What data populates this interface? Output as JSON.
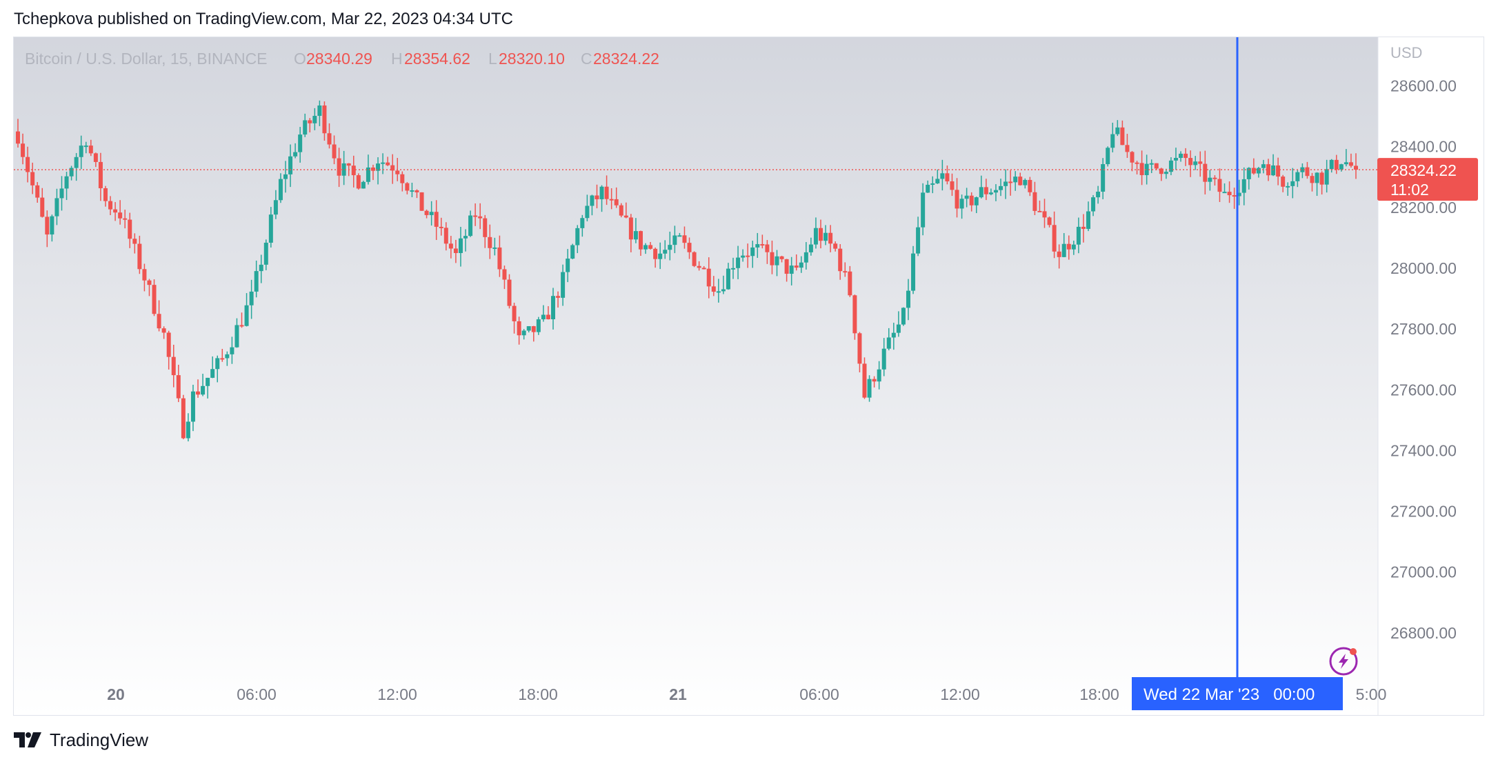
{
  "header": {
    "text": "Tchepkova published on TradingView.com, Mar 22, 2023 04:34 UTC"
  },
  "footer": {
    "brand": "TradingView"
  },
  "legend": {
    "symbol": "Bitcoin / U.S. Dollar, 15, BINANCE",
    "o_label": "O",
    "o_value": "28340.29",
    "h_label": "H",
    "h_value": "28354.62",
    "l_label": "L",
    "l_value": "28320.10",
    "c_label": "C",
    "c_value": "28324.22"
  },
  "price_label": {
    "price": "28324.22",
    "countdown": "11:02"
  },
  "crosshair_label": "Wed 22 Mar '23   00:00",
  "colors": {
    "up": "#26a69a",
    "down": "#ef5350",
    "crosshair": "#2962ff",
    "accent_purple": "#9c27b0"
  },
  "chart_data": {
    "type": "candlestick",
    "currency": "USD",
    "ylim": [
      26650,
      28760
    ],
    "yticks": [
      "28600.00",
      "28400.00",
      "28200.00",
      "28000.00",
      "27800.00",
      "27600.00",
      "27400.00",
      "27200.00",
      "27000.00",
      "26800.00"
    ],
    "xticks": [
      "20",
      "06:00",
      "12:00",
      "18:00",
      "21",
      "06:00",
      "12:00",
      "18:00",
      "5:00"
    ],
    "last_price": 28324.22,
    "keypoints": [
      {
        "t": 0,
        "p": 28440
      },
      {
        "t": 6,
        "p": 28100
      },
      {
        "t": 10,
        "p": 28310
      },
      {
        "t": 14,
        "p": 28430
      },
      {
        "t": 18,
        "p": 28220
      },
      {
        "t": 21,
        "p": 28180
      },
      {
        "t": 26,
        "p": 27970
      },
      {
        "t": 30,
        "p": 27780
      },
      {
        "t": 34,
        "p": 27470
      },
      {
        "t": 36,
        "p": 27580
      },
      {
        "t": 42,
        "p": 27700
      },
      {
        "t": 48,
        "p": 27900
      },
      {
        "t": 54,
        "p": 28280
      },
      {
        "t": 58,
        "p": 28440
      },
      {
        "t": 62,
        "p": 28520
      },
      {
        "t": 66,
        "p": 28330
      },
      {
        "t": 70,
        "p": 28290
      },
      {
        "t": 74,
        "p": 28360
      },
      {
        "t": 78,
        "p": 28330
      },
      {
        "t": 82,
        "p": 28220
      },
      {
        "t": 86,
        "p": 28140
      },
      {
        "t": 90,
        "p": 28040
      },
      {
        "t": 94,
        "p": 28180
      },
      {
        "t": 98,
        "p": 28060
      },
      {
        "t": 103,
        "p": 27760
      },
      {
        "t": 108,
        "p": 27820
      },
      {
        "t": 112,
        "p": 27960
      },
      {
        "t": 116,
        "p": 28180
      },
      {
        "t": 120,
        "p": 28250
      },
      {
        "t": 124,
        "p": 28160
      },
      {
        "t": 128,
        "p": 28080
      },
      {
        "t": 132,
        "p": 28050
      },
      {
        "t": 136,
        "p": 28090
      },
      {
        "t": 140,
        "p": 28010
      },
      {
        "t": 144,
        "p": 27930
      },
      {
        "t": 148,
        "p": 28050
      },
      {
        "t": 152,
        "p": 28060
      },
      {
        "t": 156,
        "p": 28020
      },
      {
        "t": 160,
        "p": 27980
      },
      {
        "t": 164,
        "p": 28120
      },
      {
        "t": 168,
        "p": 28060
      },
      {
        "t": 171,
        "p": 27920
      },
      {
        "t": 174,
        "p": 27580
      },
      {
        "t": 178,
        "p": 27720
      },
      {
        "t": 182,
        "p": 27840
      },
      {
        "t": 186,
        "p": 28230
      },
      {
        "t": 190,
        "p": 28300
      },
      {
        "t": 194,
        "p": 28200
      },
      {
        "t": 198,
        "p": 28250
      },
      {
        "t": 202,
        "p": 28270
      },
      {
        "t": 206,
        "p": 28300
      },
      {
        "t": 210,
        "p": 28180
      },
      {
        "t": 214,
        "p": 28050
      },
      {
        "t": 218,
        "p": 28120
      },
      {
        "t": 222,
        "p": 28240
      },
      {
        "t": 225,
        "p": 28460
      },
      {
        "t": 228,
        "p": 28380
      },
      {
        "t": 232,
        "p": 28320
      },
      {
        "t": 236,
        "p": 28340
      },
      {
        "t": 240,
        "p": 28360
      },
      {
        "t": 244,
        "p": 28300
      },
      {
        "t": 248,
        "p": 28240
      },
      {
        "t": 252,
        "p": 28290
      },
      {
        "t": 256,
        "p": 28350
      },
      {
        "t": 260,
        "p": 28290
      },
      {
        "t": 264,
        "p": 28320
      },
      {
        "t": 268,
        "p": 28300
      },
      {
        "t": 272,
        "p": 28360
      },
      {
        "t": 275,
        "p": 28324
      }
    ]
  }
}
